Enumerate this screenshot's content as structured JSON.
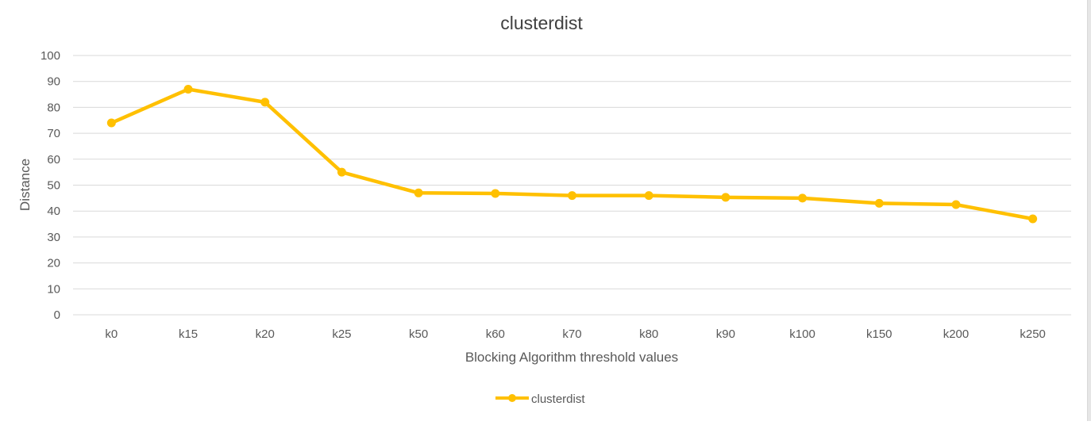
{
  "chart_data": {
    "type": "line",
    "title": "clusterdist",
    "xlabel": "Blocking Algorithm threshold values",
    "ylabel": "Distance",
    "categories": [
      "k0",
      "k15",
      "k20",
      "k25",
      "k50",
      "k60",
      "k70",
      "k80",
      "k90",
      "k100",
      "k150",
      "k200",
      "k250"
    ],
    "series": [
      {
        "name": "clusterdist",
        "color": "#FFC000",
        "values": [
          74,
          87,
          82,
          55,
          47,
          46.8,
          46,
          46,
          45.3,
          45,
          43,
          42.5,
          37
        ]
      }
    ],
    "ylim": [
      0,
      100
    ],
    "yticks": [
      "0",
      "10",
      "20",
      "30",
      "40",
      "50",
      "60",
      "70",
      "80",
      "90",
      "100"
    ],
    "grid": true,
    "legend": "bottom-center",
    "colors": {
      "grid": "#d9d9d9",
      "text": "#595959",
      "title": "#404040"
    }
  }
}
